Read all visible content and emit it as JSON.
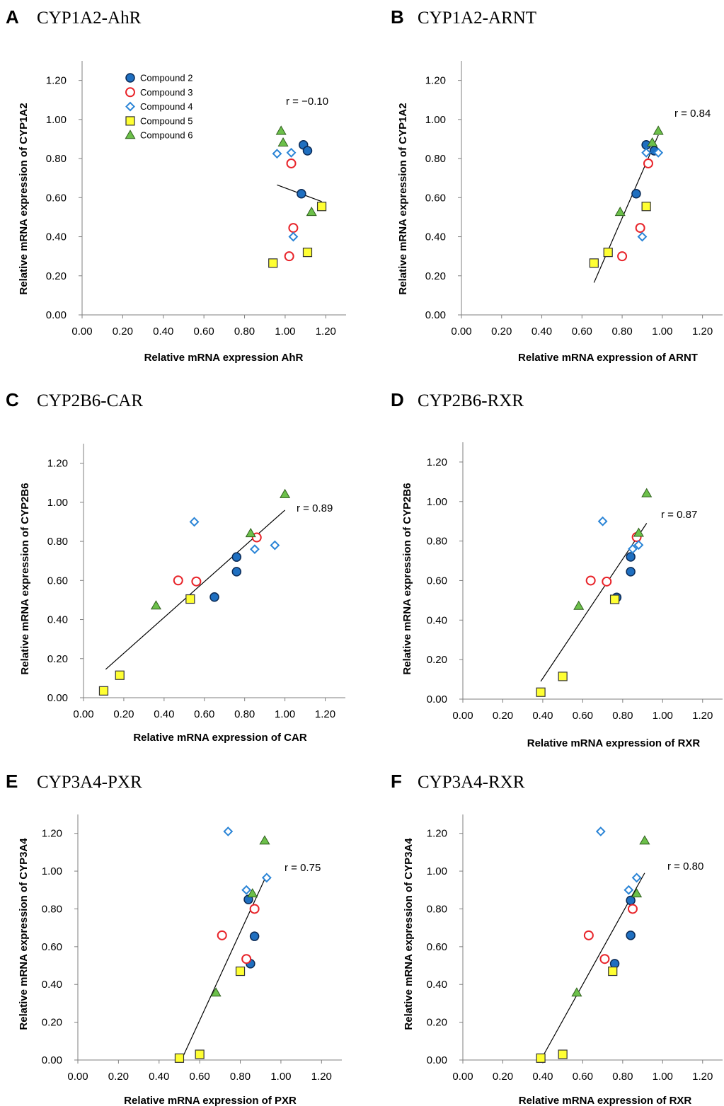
{
  "markers": {
    "Compound 2": {
      "shape": "circle-filled",
      "fill": "#1f6fc0",
      "stroke": "#0b2a55"
    },
    "Compound 3": {
      "shape": "circle-open",
      "fill": "#ffffff",
      "stroke": "#e8242a"
    },
    "Compound 4": {
      "shape": "diamond-open",
      "fill": "#ffffff",
      "stroke": "#2a84d6"
    },
    "Compound 5": {
      "shape": "square",
      "fill": "#ffff33",
      "stroke": "#333333"
    },
    "Compound 6": {
      "shape": "triangle",
      "fill": "#6cc04a",
      "stroke": "#2e5d1c"
    }
  },
  "legend": {
    "entries": [
      "Compound 2",
      "Compound 3",
      "Compound 4",
      "Compound 5",
      "Compound 6"
    ]
  },
  "chart_data": [
    {
      "type": "scatter",
      "panel": "A",
      "title": "CYP1A2-AhR",
      "xlabel": "Relative mRNA expression AhR",
      "ylabel": "Relative mRNA expression of CYP1A2",
      "xlim": [
        0,
        1.3
      ],
      "ylim": [
        0,
        1.3
      ],
      "ticks": [
        "0.00",
        "0.20",
        "0.40",
        "0.60",
        "0.80",
        "1.00",
        "1.20"
      ],
      "r_label": "r = −0.10",
      "trendline": [
        [
          0.96,
          0.665
        ],
        [
          1.18,
          0.58
        ]
      ],
      "series": [
        {
          "name": "Compound 2",
          "points": [
            [
              1.09,
              0.87
            ],
            [
              1.11,
              0.84
            ],
            [
              1.08,
              0.62
            ]
          ]
        },
        {
          "name": "Compound 3",
          "points": [
            [
              1.03,
              0.775
            ],
            [
              1.04,
              0.445
            ],
            [
              1.02,
              0.3
            ]
          ]
        },
        {
          "name": "Compound 4",
          "points": [
            [
              0.96,
              0.825
            ],
            [
              1.03,
              0.83
            ],
            [
              1.04,
              0.4
            ]
          ]
        },
        {
          "name": "Compound 5",
          "points": [
            [
              1.18,
              0.555
            ],
            [
              1.11,
              0.32
            ],
            [
              0.94,
              0.265
            ]
          ]
        },
        {
          "name": "Compound 6",
          "points": [
            [
              0.98,
              0.94
            ],
            [
              0.99,
              0.88
            ],
            [
              1.13,
              0.525
            ]
          ]
        }
      ]
    },
    {
      "type": "scatter",
      "panel": "B",
      "title": "CYP1A2-ARNT",
      "xlabel": "Relative mRNA expression of ARNT",
      "ylabel": "Relative mRNA expression of CYP1A2",
      "xlim": [
        0,
        1.3
      ],
      "ylim": [
        0,
        1.3
      ],
      "ticks": [
        "0.00",
        "0.20",
        "0.40",
        "0.60",
        "0.80",
        "1.00",
        "1.20"
      ],
      "r_label": "r = 0.84",
      "trendline": [
        [
          0.66,
          0.165
        ],
        [
          0.98,
          0.92
        ]
      ],
      "series": [
        {
          "name": "Compound 2",
          "points": [
            [
              0.92,
              0.87
            ],
            [
              0.96,
              0.84
            ],
            [
              0.87,
              0.62
            ]
          ]
        },
        {
          "name": "Compound 3",
          "points": [
            [
              0.93,
              0.775
            ],
            [
              0.89,
              0.445
            ],
            [
              0.8,
              0.3
            ]
          ]
        },
        {
          "name": "Compound 4",
          "points": [
            [
              0.92,
              0.83
            ],
            [
              0.98,
              0.83
            ],
            [
              0.9,
              0.4
            ]
          ]
        },
        {
          "name": "Compound 5",
          "points": [
            [
              0.92,
              0.555
            ],
            [
              0.73,
              0.32
            ],
            [
              0.66,
              0.265
            ]
          ]
        },
        {
          "name": "Compound 6",
          "points": [
            [
              0.98,
              0.94
            ],
            [
              0.95,
              0.88
            ],
            [
              0.79,
              0.525
            ]
          ]
        }
      ]
    },
    {
      "type": "scatter",
      "panel": "C",
      "title": "CYP2B6-CAR",
      "xlabel": "Relative mRNA expression of CAR",
      "ylabel": "Relative mRNA expression of CYP2B6",
      "xlim": [
        0,
        1.3
      ],
      "ylim": [
        0,
        1.3
      ],
      "ticks": [
        "0.00",
        "0.20",
        "0.40",
        "0.60",
        "0.80",
        "1.00",
        "1.20"
      ],
      "r_label": "r = 0.89",
      "trendline": [
        [
          0.11,
          0.145
        ],
        [
          1.0,
          0.96
        ]
      ],
      "series": [
        {
          "name": "Compound 2",
          "points": [
            [
              0.76,
              0.72
            ],
            [
              0.76,
              0.645
            ],
            [
              0.65,
              0.515
            ]
          ]
        },
        {
          "name": "Compound 3",
          "points": [
            [
              0.86,
              0.82
            ],
            [
              0.47,
              0.6
            ],
            [
              0.56,
              0.595
            ]
          ]
        },
        {
          "name": "Compound 4",
          "points": [
            [
              0.55,
              0.9
            ],
            [
              0.95,
              0.78
            ],
            [
              0.85,
              0.76
            ]
          ]
        },
        {
          "name": "Compound 5",
          "points": [
            [
              0.53,
              0.505
            ],
            [
              0.18,
              0.115
            ],
            [
              0.1,
              0.035
            ]
          ]
        },
        {
          "name": "Compound 6",
          "points": [
            [
              1.0,
              1.04
            ],
            [
              0.83,
              0.84
            ],
            [
              0.36,
              0.47
            ]
          ]
        }
      ]
    },
    {
      "type": "scatter",
      "panel": "D",
      "title": "CYP2B6-RXR",
      "xlabel": "Relative mRNA expression of RXR",
      "ylabel": "Relative mRNA expression of CYP2B6",
      "xlim": [
        0,
        1.3
      ],
      "ylim": [
        0,
        1.3
      ],
      "ticks": [
        "0.00",
        "0.20",
        "0.40",
        "0.60",
        "0.80",
        "1.00",
        "1.20"
      ],
      "r_label": "r = 0.87",
      "trendline": [
        [
          0.39,
          0.09
        ],
        [
          0.92,
          0.89
        ]
      ],
      "series": [
        {
          "name": "Compound 2",
          "points": [
            [
              0.84,
              0.72
            ],
            [
              0.84,
              0.645
            ],
            [
              0.77,
              0.515
            ]
          ]
        },
        {
          "name": "Compound 3",
          "points": [
            [
              0.87,
              0.82
            ],
            [
              0.64,
              0.6
            ],
            [
              0.72,
              0.595
            ]
          ]
        },
        {
          "name": "Compound 4",
          "points": [
            [
              0.7,
              0.9
            ],
            [
              0.88,
              0.78
            ],
            [
              0.85,
              0.76
            ]
          ]
        },
        {
          "name": "Compound 5",
          "points": [
            [
              0.76,
              0.505
            ],
            [
              0.5,
              0.115
            ],
            [
              0.39,
              0.035
            ]
          ]
        },
        {
          "name": "Compound 6",
          "points": [
            [
              0.92,
              1.04
            ],
            [
              0.88,
              0.84
            ],
            [
              0.58,
              0.47
            ]
          ]
        }
      ]
    },
    {
      "type": "scatter",
      "panel": "E",
      "title": "CYP3A4-PXR",
      "xlabel": "Relative mRNA expression of PXR",
      "ylabel": "Relative mRNA expression of CYP3A4",
      "xlim": [
        0,
        1.3
      ],
      "ylim": [
        0,
        1.3
      ],
      "ticks": [
        "0.00",
        "0.20",
        "0.40",
        "0.60",
        "0.80",
        "1.00",
        "1.20"
      ],
      "r_label": "r = 0.75",
      "trendline": [
        [
          0.51,
          0.0
        ],
        [
          0.93,
          0.98
        ]
      ],
      "series": [
        {
          "name": "Compound 2",
          "points": [
            [
              0.84,
              0.85
            ],
            [
              0.87,
              0.655
            ],
            [
              0.85,
              0.51
            ]
          ]
        },
        {
          "name": "Compound 3",
          "points": [
            [
              0.87,
              0.8
            ],
            [
              0.71,
              0.66
            ],
            [
              0.83,
              0.535
            ]
          ]
        },
        {
          "name": "Compound 4",
          "points": [
            [
              0.74,
              1.21
            ],
            [
              0.93,
              0.965
            ],
            [
              0.83,
              0.9
            ]
          ]
        },
        {
          "name": "Compound 5",
          "points": [
            [
              0.8,
              0.47
            ],
            [
              0.5,
              0.01
            ],
            [
              0.6,
              0.03
            ]
          ]
        },
        {
          "name": "Compound 6",
          "points": [
            [
              0.92,
              1.16
            ],
            [
              0.86,
              0.88
            ],
            [
              0.68,
              0.355
            ]
          ]
        }
      ]
    },
    {
      "type": "scatter",
      "panel": "F",
      "title": "CYP3A4-RXR",
      "xlabel": "Relative mRNA expression of RXR",
      "ylabel": "Relative mRNA expression of CYP3A4",
      "xlim": [
        0,
        1.3
      ],
      "ylim": [
        0,
        1.3
      ],
      "ticks": [
        "0.00",
        "0.20",
        "0.40",
        "0.60",
        "0.80",
        "1.00",
        "1.20"
      ],
      "r_label": "r = 0.80",
      "trendline": [
        [
          0.39,
          0.0
        ],
        [
          0.91,
          0.99
        ]
      ],
      "series": [
        {
          "name": "Compound 2",
          "points": [
            [
              0.84,
              0.845
            ],
            [
              0.84,
              0.66
            ],
            [
              0.76,
              0.51
            ]
          ]
        },
        {
          "name": "Compound 3",
          "points": [
            [
              0.85,
              0.8
            ],
            [
              0.63,
              0.66
            ],
            [
              0.71,
              0.535
            ]
          ]
        },
        {
          "name": "Compound 4",
          "points": [
            [
              0.69,
              1.21
            ],
            [
              0.87,
              0.965
            ],
            [
              0.83,
              0.9
            ]
          ]
        },
        {
          "name": "Compound 5",
          "points": [
            [
              0.75,
              0.47
            ],
            [
              0.39,
              0.01
            ],
            [
              0.5,
              0.03
            ]
          ]
        },
        {
          "name": "Compound 6",
          "points": [
            [
              0.91,
              1.16
            ],
            [
              0.87,
              0.88
            ],
            [
              0.57,
              0.355
            ]
          ]
        }
      ]
    }
  ]
}
